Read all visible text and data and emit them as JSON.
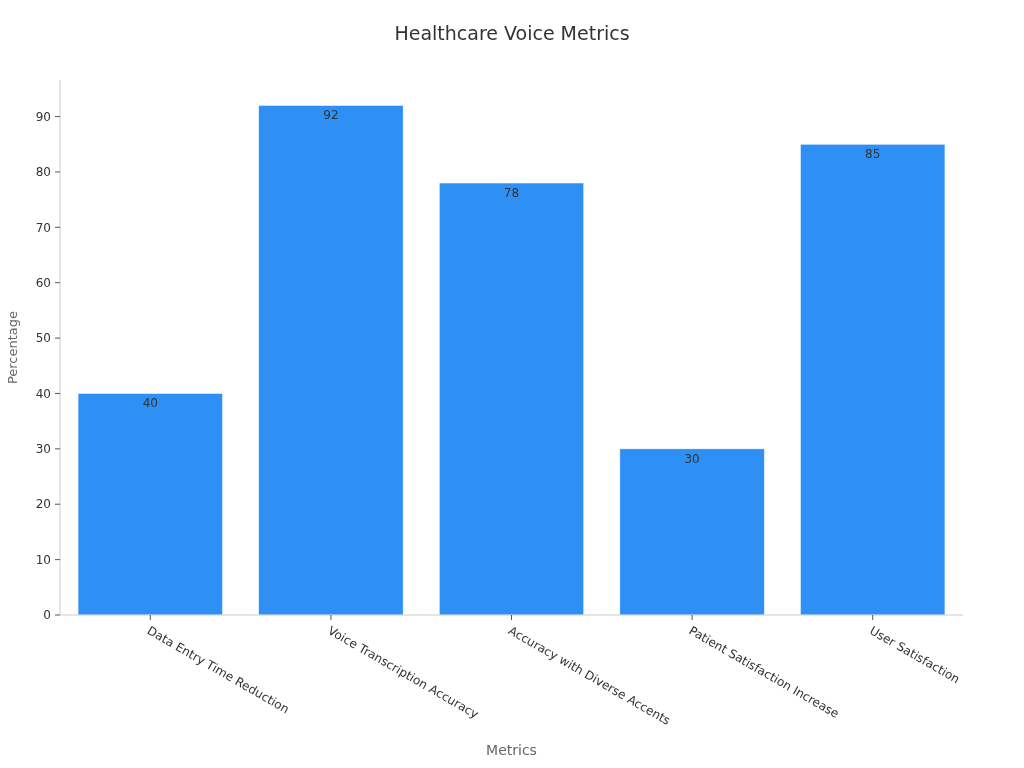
{
  "chart_data": {
    "type": "bar",
    "title": "Healthcare Voice Metrics",
    "xlabel": "Metrics",
    "ylabel": "Percentage",
    "categories": [
      "Data Entry Time Reduction",
      "Voice Transcription Accuracy",
      "Accuracy with Diverse Accents",
      "Patient Satisfaction Increase",
      "User Satisfaction"
    ],
    "values": [
      40,
      92,
      78,
      30,
      85
    ],
    "color": "#2e90f5",
    "ylim": [
      0,
      96.6
    ],
    "yticks": [
      0,
      10,
      20,
      30,
      40,
      50,
      60,
      70,
      80,
      90
    ],
    "grid": false,
    "data_labels": true
  }
}
